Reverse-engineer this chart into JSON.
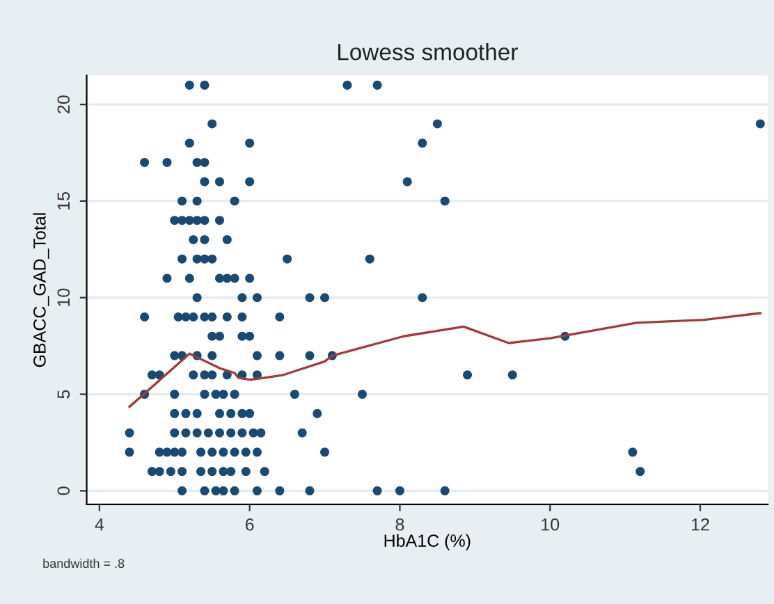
{
  "chart_data": {
    "type": "scatter",
    "title": "Lowess smoother",
    "xlabel": "HbA1C (%)",
    "ylabel": "GBACC_GAD_Total",
    "annotations": [
      "bandwidth = .8"
    ],
    "xlim": [
      3.83,
      12.9
    ],
    "ylim": [
      -0.7,
      21.5
    ],
    "xticks": [
      4,
      6,
      8,
      10,
      12
    ],
    "yticks": [
      0,
      5,
      10,
      15,
      20
    ],
    "grid": "y",
    "marker": "circle",
    "series": [
      {
        "color": "#1a4a72",
        "x": [
          5.2,
          5.4,
          7.3,
          7.7,
          5.5,
          8.5,
          12.8,
          5.2,
          6.0,
          8.3,
          4.6,
          4.9,
          5.3,
          5.4,
          5.4,
          5.6,
          6.0,
          8.1,
          5.1,
          5.3,
          5.8,
          8.6,
          5.0,
          5.1,
          5.2,
          5.3,
          5.4,
          5.6,
          5.25,
          5.4,
          5.7,
          5.1,
          5.3,
          5.4,
          5.5,
          6.5,
          7.6,
          4.9,
          5.2,
          5.6,
          5.7,
          5.8,
          6.0,
          5.3,
          5.9,
          6.1,
          6.8,
          7.0,
          8.3,
          4.6,
          5.05,
          5.15,
          5.25,
          5.4,
          5.5,
          5.7,
          5.9,
          6.4,
          5.5,
          5.6,
          5.9,
          6.0,
          10.2,
          5.0,
          5.1,
          5.3,
          5.5,
          6.1,
          6.4,
          6.8,
          7.1,
          4.7,
          4.8,
          5.25,
          5.4,
          5.5,
          5.7,
          5.9,
          6.1,
          8.9,
          9.5,
          4.6,
          5.0,
          5.4,
          5.55,
          5.65,
          5.8,
          6.6,
          7.5,
          5.0,
          5.15,
          5.3,
          5.6,
          5.75,
          5.9,
          6.0,
          6.9,
          4.4,
          5.0,
          5.15,
          5.3,
          5.45,
          5.6,
          5.75,
          5.9,
          6.05,
          6.15,
          6.7,
          4.4,
          4.8,
          4.9,
          5.0,
          5.1,
          5.35,
          5.5,
          5.65,
          5.8,
          5.95,
          6.1,
          7.0,
          11.1,
          4.7,
          4.8,
          4.95,
          5.1,
          5.35,
          5.5,
          5.65,
          5.75,
          5.95,
          6.2,
          11.2,
          5.1,
          5.4,
          5.55,
          5.65,
          5.8,
          6.1,
          6.4,
          6.8,
          7.7,
          8.0,
          8.6
        ],
        "values": [
          21,
          21,
          21,
          21,
          19,
          19,
          19,
          18,
          18,
          18,
          17,
          17,
          17,
          17,
          16,
          16,
          16,
          16,
          15,
          15,
          15,
          15,
          14,
          14,
          14,
          14,
          14,
          14,
          13,
          13,
          13,
          12,
          12,
          12,
          12,
          12,
          12,
          11,
          11,
          11,
          11,
          11,
          11,
          10,
          10,
          10,
          10,
          10,
          10,
          9,
          9,
          9,
          9,
          9,
          9,
          9,
          9,
          9,
          8,
          8,
          8,
          8,
          8,
          7,
          7,
          7,
          7,
          7,
          7,
          7,
          7,
          6,
          6,
          6,
          6,
          6,
          6,
          6,
          6,
          6,
          6,
          5,
          5,
          5,
          5,
          5,
          5,
          5,
          5,
          4,
          4,
          4,
          4,
          4,
          4,
          4,
          4,
          3,
          3,
          3,
          3,
          3,
          3,
          3,
          3,
          3,
          3,
          3,
          2,
          2,
          2,
          2,
          2,
          2,
          2,
          2,
          2,
          2,
          2,
          2,
          2,
          1,
          1,
          1,
          1,
          1,
          1,
          1,
          1,
          1,
          1,
          1,
          0,
          0,
          0,
          0,
          0,
          0,
          0,
          0,
          0,
          0,
          0
        ]
      },
      {
        "type": "line",
        "color": "#a03c3c",
        "marker": "none",
        "x": [
          4.4,
          5.2,
          5.6,
          5.8,
          5.85,
          6.0,
          6.2,
          6.45,
          7.0,
          7.1,
          8.05,
          8.85,
          9.45,
          10.0,
          11.15,
          12.05,
          12.8
        ],
        "values": [
          4.35,
          7.1,
          6.35,
          6.1,
          5.85,
          5.75,
          5.85,
          6.0,
          6.7,
          7.0,
          8.0,
          8.5,
          7.65,
          7.9,
          8.7,
          8.85,
          9.2
        ]
      }
    ]
  }
}
